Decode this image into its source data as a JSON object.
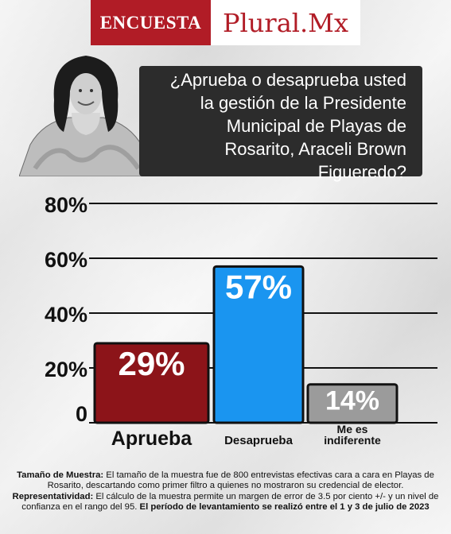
{
  "brand": {
    "label_left": "ENCUESTA",
    "label_right": "Plural.Mx"
  },
  "question": "¿Aprueba o desaprueba usted la gestión de la Presidente Municipal de Playas de Rosarito, Araceli Brown Figueredo?",
  "chart_data": {
    "type": "bar",
    "categories": [
      "Aprueba",
      "Desaprueba",
      "Me es indiferente"
    ],
    "category_display": [
      [
        "Aprueba"
      ],
      [
        "Desaprueba"
      ],
      [
        "Me es",
        "indiferente"
      ]
    ],
    "values": [
      29,
      57,
      14
    ],
    "value_labels": [
      "29%",
      "57%",
      "14%"
    ],
    "colors": [
      "#8c1419",
      "#1a95f0",
      "#9b9b9b"
    ],
    "yticks": [
      0,
      20,
      40,
      60,
      80
    ],
    "ytick_labels": [
      "0",
      "20%",
      "40%",
      "60%",
      "80%"
    ],
    "ylim": [
      0,
      80
    ],
    "grid": true
  },
  "footer": {
    "sample_label": "Tamaño de Muestra:",
    "sample_text": "El tamaño de la muestra fue de 800 entrevistas efectivas cara a cara en Playas de Rosarito, descartando como primer filtro a quienes no mostraron su credencial de elector.",
    "rep_label": "Representatividad:",
    "rep_text": "El cálculo de la muestra permite un margen de error de 3.5 por ciento +/- y un nivel de confianza en el rango del 95.",
    "period_text": "El período de levantamiento se realizó entre el 1 y 3 de julio de 2023"
  }
}
